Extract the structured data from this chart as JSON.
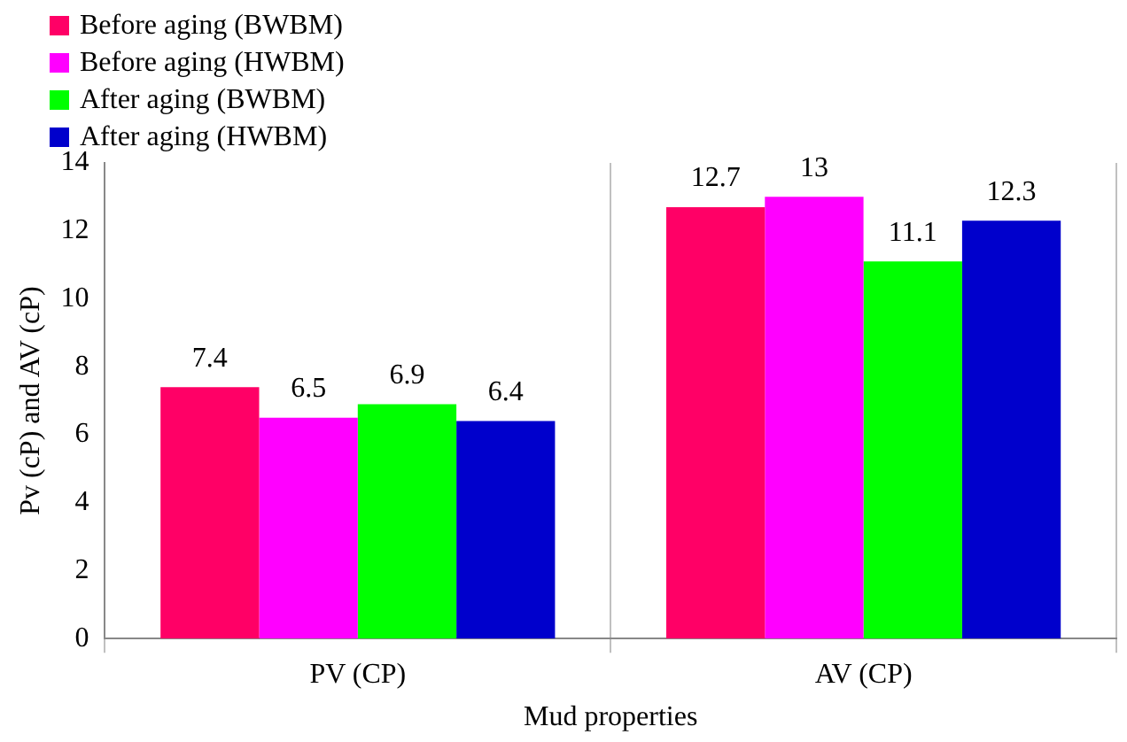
{
  "chart_data": {
    "type": "bar",
    "xlabel": "Mud properties",
    "ylabel": "Pv (cP) and AV (cP)",
    "categories": [
      "PV (CP)",
      "AV (CP)"
    ],
    "series": [
      {
        "name": "Before aging (BWBM)",
        "color": "#ff0066",
        "values": [
          7.4,
          12.7
        ]
      },
      {
        "name": "Before aging (HWBM)",
        "color": "#ff00ff",
        "values": [
          6.5,
          13
        ]
      },
      {
        "name": "After aging (BWBM)",
        "color": "#00ff00",
        "values": [
          6.9,
          11.1
        ]
      },
      {
        "name": "After aging (HWBM)",
        "color": "#0000cc",
        "values": [
          6.4,
          12.3
        ]
      }
    ],
    "ylim": [
      0,
      14
    ],
    "yticks": [
      0,
      2,
      4,
      6,
      8,
      10,
      12,
      14
    ],
    "grid": "x",
    "legend": "top left",
    "data_labels": true
  }
}
